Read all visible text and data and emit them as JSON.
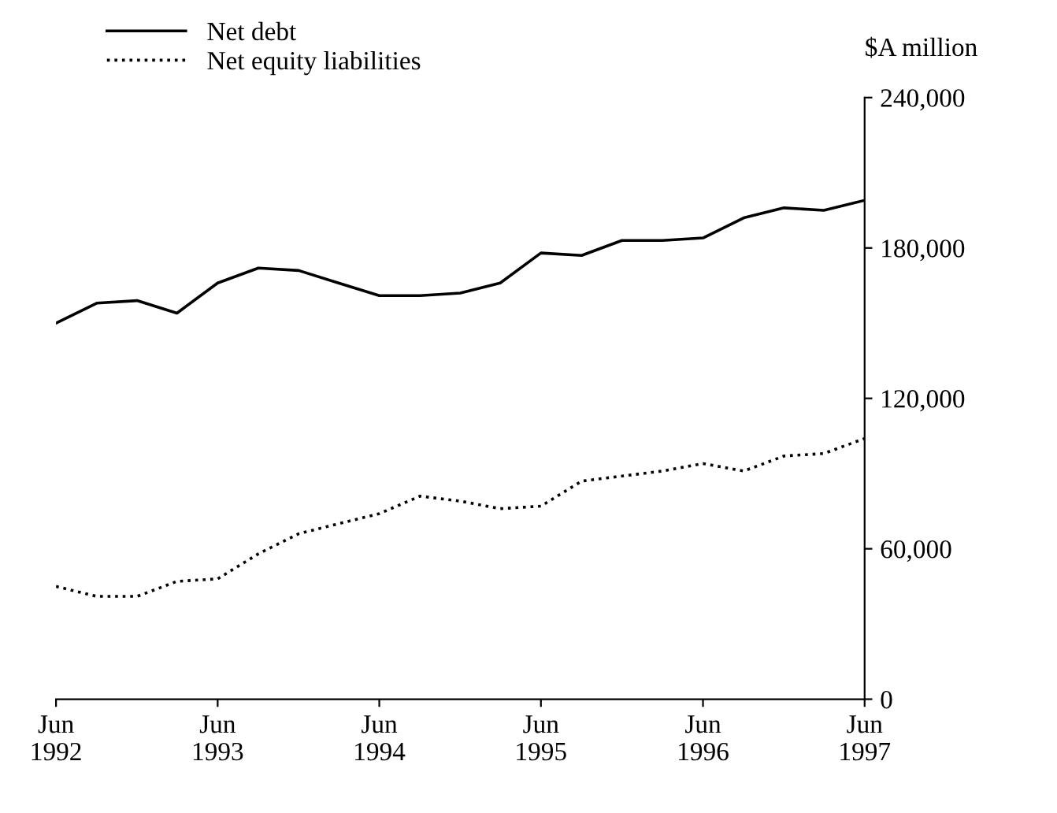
{
  "chart_data": {
    "type": "line",
    "ylabel": "$A million",
    "x": [
      "1992-06",
      "1992-09",
      "1992-12",
      "1993-03",
      "1993-06",
      "1993-09",
      "1993-12",
      "1994-03",
      "1994-06",
      "1994-09",
      "1994-12",
      "1995-03",
      "1995-06",
      "1995-09",
      "1995-12",
      "1996-03",
      "1996-06",
      "1996-09",
      "1996-12",
      "1997-03",
      "1997-06"
    ],
    "series": [
      {
        "name": "Net debt",
        "color": "#000000",
        "line_style": "solid",
        "values": [
          150000,
          158000,
          159000,
          154000,
          166000,
          172000,
          171000,
          166000,
          161000,
          161000,
          162000,
          166000,
          178000,
          177000,
          183000,
          183000,
          184000,
          192000,
          196000,
          195000,
          199000
        ]
      },
      {
        "name": "Net equity liabilities",
        "color": "#000000",
        "line_style": "dotted",
        "values": [
          45000,
          41000,
          41000,
          47000,
          48000,
          58000,
          66000,
          70000,
          74000,
          81000,
          79000,
          76000,
          77000,
          87000,
          89000,
          91000,
          94000,
          91000,
          97000,
          98000,
          104000
        ]
      }
    ],
    "xlim": [
      "1992-06",
      "1997-06"
    ],
    "xticks": [
      {
        "value": "1992-06",
        "label": "Jun\n1992"
      },
      {
        "value": "1993-06",
        "label": "Jun\n1993"
      },
      {
        "value": "1994-06",
        "label": "Jun\n1994"
      },
      {
        "value": "1995-06",
        "label": "Jun\n1995"
      },
      {
        "value": "1996-06",
        "label": "Jun\n1996"
      },
      {
        "value": "1997-06",
        "label": "Jun\n1997"
      }
    ],
    "ylim": [
      0,
      240000
    ],
    "yticks": [
      {
        "value": 0,
        "label": "0"
      },
      {
        "value": 60000,
        "label": "60,000"
      },
      {
        "value": 120000,
        "label": "120,000"
      },
      {
        "value": 180000,
        "label": "180,000"
      },
      {
        "value": 240000,
        "label": "240,000"
      }
    ],
    "grid": false,
    "legend": "top left",
    "marker": "none"
  }
}
